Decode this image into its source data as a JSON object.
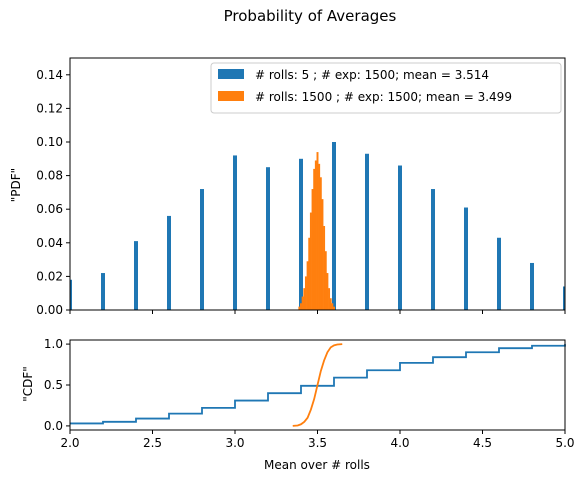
{
  "chart_data": [
    {
      "type": "bar",
      "title": "Probability of Averages",
      "ylabel": "\"PDF\"",
      "xlim": [
        2.0,
        5.0
      ],
      "ylim": [
        0.0,
        0.15
      ],
      "yticks": [
        "0.00",
        "0.02",
        "0.04",
        "0.06",
        "0.08",
        "0.10",
        "0.12",
        "0.14"
      ],
      "legend_position": "top-right",
      "series": [
        {
          "name": "# rolls: 5 ; # exp: 1500; mean = 3.514",
          "color": "#1f77b4",
          "x": [
            2.0,
            2.2,
            2.4,
            2.6,
            2.8,
            3.0,
            3.2,
            3.4,
            3.6,
            3.8,
            4.0,
            4.2,
            4.4,
            4.6,
            4.8,
            5.0
          ],
          "values": [
            0.018,
            0.022,
            0.041,
            0.056,
            0.072,
            0.092,
            0.085,
            0.09,
            0.1,
            0.093,
            0.086,
            0.072,
            0.061,
            0.043,
            0.028,
            0.014
          ]
        },
        {
          "name": "# rolls: 1500 ; # exp: 1500; mean = 3.499",
          "color": "#ff7f0e",
          "x": [
            3.39,
            3.4,
            3.41,
            3.42,
            3.43,
            3.44,
            3.45,
            3.46,
            3.47,
            3.48,
            3.49,
            3.5,
            3.51,
            3.52,
            3.53,
            3.54,
            3.55,
            3.56,
            3.57,
            3.58,
            3.59,
            3.6
          ],
          "values": [
            0.002,
            0.004,
            0.008,
            0.013,
            0.02,
            0.029,
            0.043,
            0.058,
            0.072,
            0.084,
            0.089,
            0.094,
            0.087,
            0.079,
            0.066,
            0.05,
            0.035,
            0.022,
            0.013,
            0.007,
            0.004,
            0.002
          ]
        }
      ]
    },
    {
      "type": "line",
      "ylabel": "\"CDF\"",
      "xlabel": "Mean over # rolls",
      "xlim": [
        2.0,
        5.0
      ],
      "ylim": [
        -0.05,
        1.05
      ],
      "yticks": [
        "0.0",
        "0.5",
        "1.0"
      ],
      "xticks": [
        "2.0",
        "2.5",
        "3.0",
        "3.5",
        "4.0",
        "4.5",
        "5.0"
      ],
      "series": [
        {
          "color": "#1f77b4",
          "step": true,
          "x": [
            2.0,
            2.2,
            2.4,
            2.6,
            2.8,
            3.0,
            3.2,
            3.4,
            3.6,
            3.8,
            4.0,
            4.2,
            4.4,
            4.6,
            4.8,
            5.0
          ],
          "values": [
            0.03,
            0.05,
            0.09,
            0.15,
            0.22,
            0.31,
            0.4,
            0.49,
            0.59,
            0.68,
            0.77,
            0.84,
            0.9,
            0.95,
            0.98,
            1.0
          ]
        },
        {
          "color": "#ff7f0e",
          "x": [
            3.35,
            3.38,
            3.4,
            3.42,
            3.44,
            3.46,
            3.48,
            3.5,
            3.52,
            3.54,
            3.56,
            3.58,
            3.6,
            3.62,
            3.65
          ],
          "values": [
            0.0,
            0.005,
            0.02,
            0.05,
            0.1,
            0.2,
            0.33,
            0.5,
            0.67,
            0.8,
            0.9,
            0.96,
            0.985,
            0.995,
            1.0
          ]
        }
      ]
    }
  ]
}
